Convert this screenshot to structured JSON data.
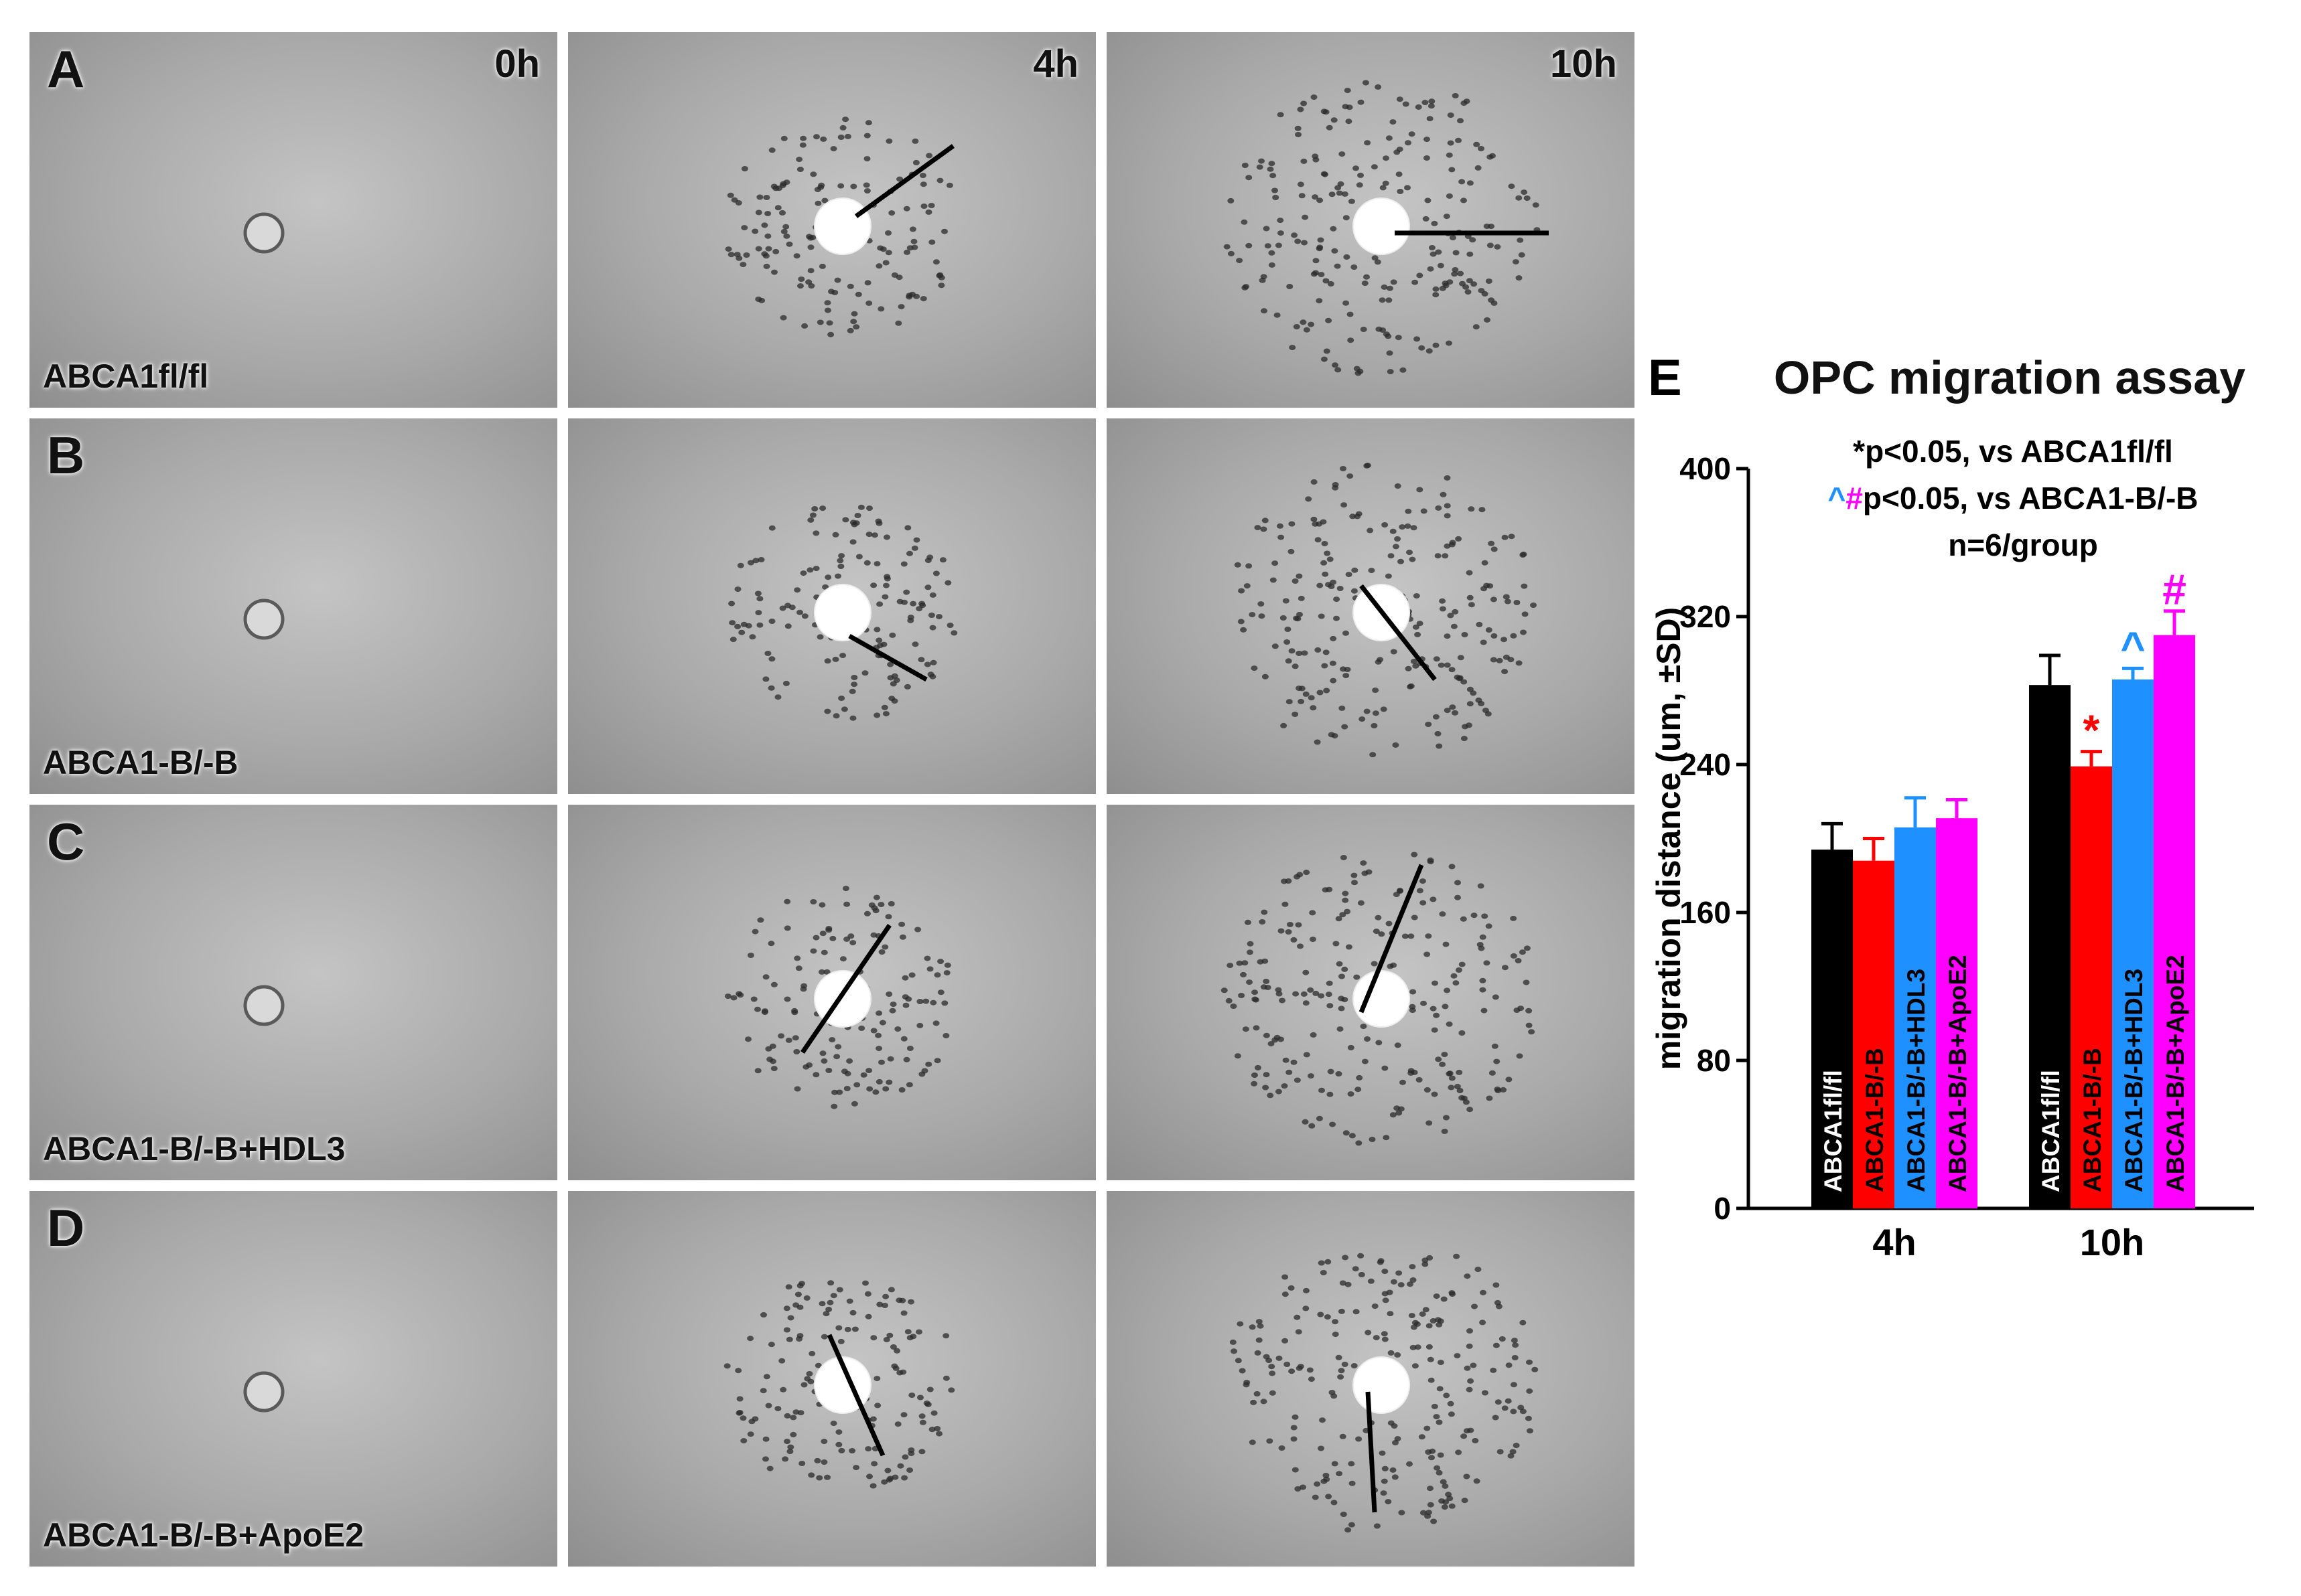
{
  "panels": [
    {
      "letter": "A",
      "group": "ABCA1fl/fl",
      "times": [
        "0h",
        "4h",
        "10h"
      ]
    },
    {
      "letter": "B",
      "group": "ABCA1-B/-B",
      "times": [
        "",
        "",
        ""
      ]
    },
    {
      "letter": "C",
      "group": "ABCA1-B/-B+HDL3",
      "times": [
        "",
        "",
        ""
      ]
    },
    {
      "letter": "D",
      "group": "ABCA1-B/-B+ApoE2",
      "times": [
        "",
        "",
        ""
      ]
    }
  ],
  "panel_e": {
    "letter": "E",
    "title": "OPC migration assay",
    "stat_line1": "*p<0.05, vs ABCA1fl/fl",
    "stat_line2_symbols": [
      "^",
      "#"
    ],
    "stat_line2_text": "p<0.05, vs ABCA1-B/-B",
    "stat_line3": "n=6/group"
  },
  "chart_data": {
    "type": "bar",
    "categories": [
      "4h",
      "10h"
    ],
    "ylabel": "migration distance (um, ±SD)",
    "ylim": [
      0,
      400
    ],
    "yticks": [
      0,
      80,
      160,
      240,
      320,
      400
    ],
    "series": [
      {
        "name": "ABCA1fl/fl",
        "color": "#000000",
        "values": [
          194,
          283
        ],
        "errors": [
          14,
          16
        ],
        "marks": [
          "",
          ""
        ],
        "mark_color": ""
      },
      {
        "name": "ABCA1-B/-B",
        "color": "#ff0000",
        "values": [
          188,
          239
        ],
        "errors": [
          12,
          8
        ],
        "marks": [
          "",
          "*"
        ],
        "mark_color": "#ff0000"
      },
      {
        "name": "ABCA1-B/-B+HDL3",
        "color": "#1e90ff",
        "values": [
          206,
          286
        ],
        "errors": [
          16,
          6
        ],
        "marks": [
          "",
          "^"
        ],
        "mark_color": "#1e90ff"
      },
      {
        "name": "ABCA1-B/-B+ApoE2",
        "color": "#ff00ff",
        "values": [
          211,
          310
        ],
        "errors": [
          10,
          13
        ],
        "marks": [
          "",
          "#"
        ],
        "mark_color": "#ff00ff"
      }
    ]
  }
}
